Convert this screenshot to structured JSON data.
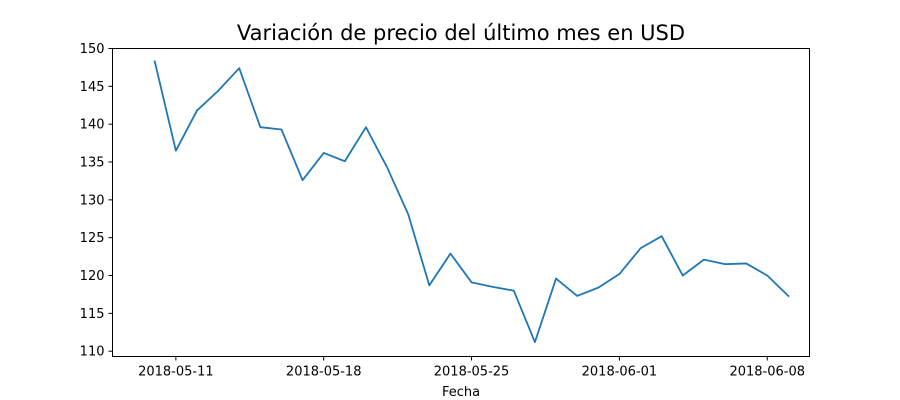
{
  "chart_data": {
    "type": "line",
    "title": "Variación de precio del último mes en USD",
    "xlabel": "Fecha",
    "ylabel": "",
    "ylim": [
      109.3,
      150.0
    ],
    "xlim": [
      "2018-05-08",
      "2018-06-10"
    ],
    "grid": false,
    "legend": null,
    "line_color": "#1f77b4",
    "x_ticks": [
      "2018-05-11",
      "2018-05-18",
      "2018-05-25",
      "2018-06-01",
      "2018-06-08"
    ],
    "y_ticks": [
      110,
      115,
      120,
      125,
      130,
      135,
      140,
      145,
      150
    ],
    "series": [
      {
        "x": [
          "2018-05-10",
          "2018-05-11",
          "2018-05-12",
          "2018-05-13",
          "2018-05-14",
          "2018-05-15",
          "2018-05-16",
          "2018-05-17",
          "2018-05-18",
          "2018-05-19",
          "2018-05-20",
          "2018-05-21",
          "2018-05-22",
          "2018-05-23",
          "2018-05-24",
          "2018-05-25",
          "2018-05-26",
          "2018-05-27",
          "2018-05-28",
          "2018-05-29",
          "2018-05-30",
          "2018-05-31",
          "2018-06-01",
          "2018-06-02",
          "2018-06-03",
          "2018-06-04",
          "2018-06-05",
          "2018-06-06",
          "2018-06-07",
          "2018-06-08",
          "2018-06-09"
        ],
        "values": [
          148.3,
          136.5,
          141.8,
          144.4,
          147.4,
          139.6,
          139.3,
          132.6,
          136.2,
          135.1,
          139.6,
          134.3,
          128.1,
          118.7,
          122.9,
          119.1,
          118.5,
          118.0,
          111.2,
          119.6,
          117.3,
          118.4,
          120.2,
          123.6,
          125.2,
          120.0,
          122.1,
          121.5,
          121.6,
          120.0,
          117.3
        ]
      }
    ]
  }
}
